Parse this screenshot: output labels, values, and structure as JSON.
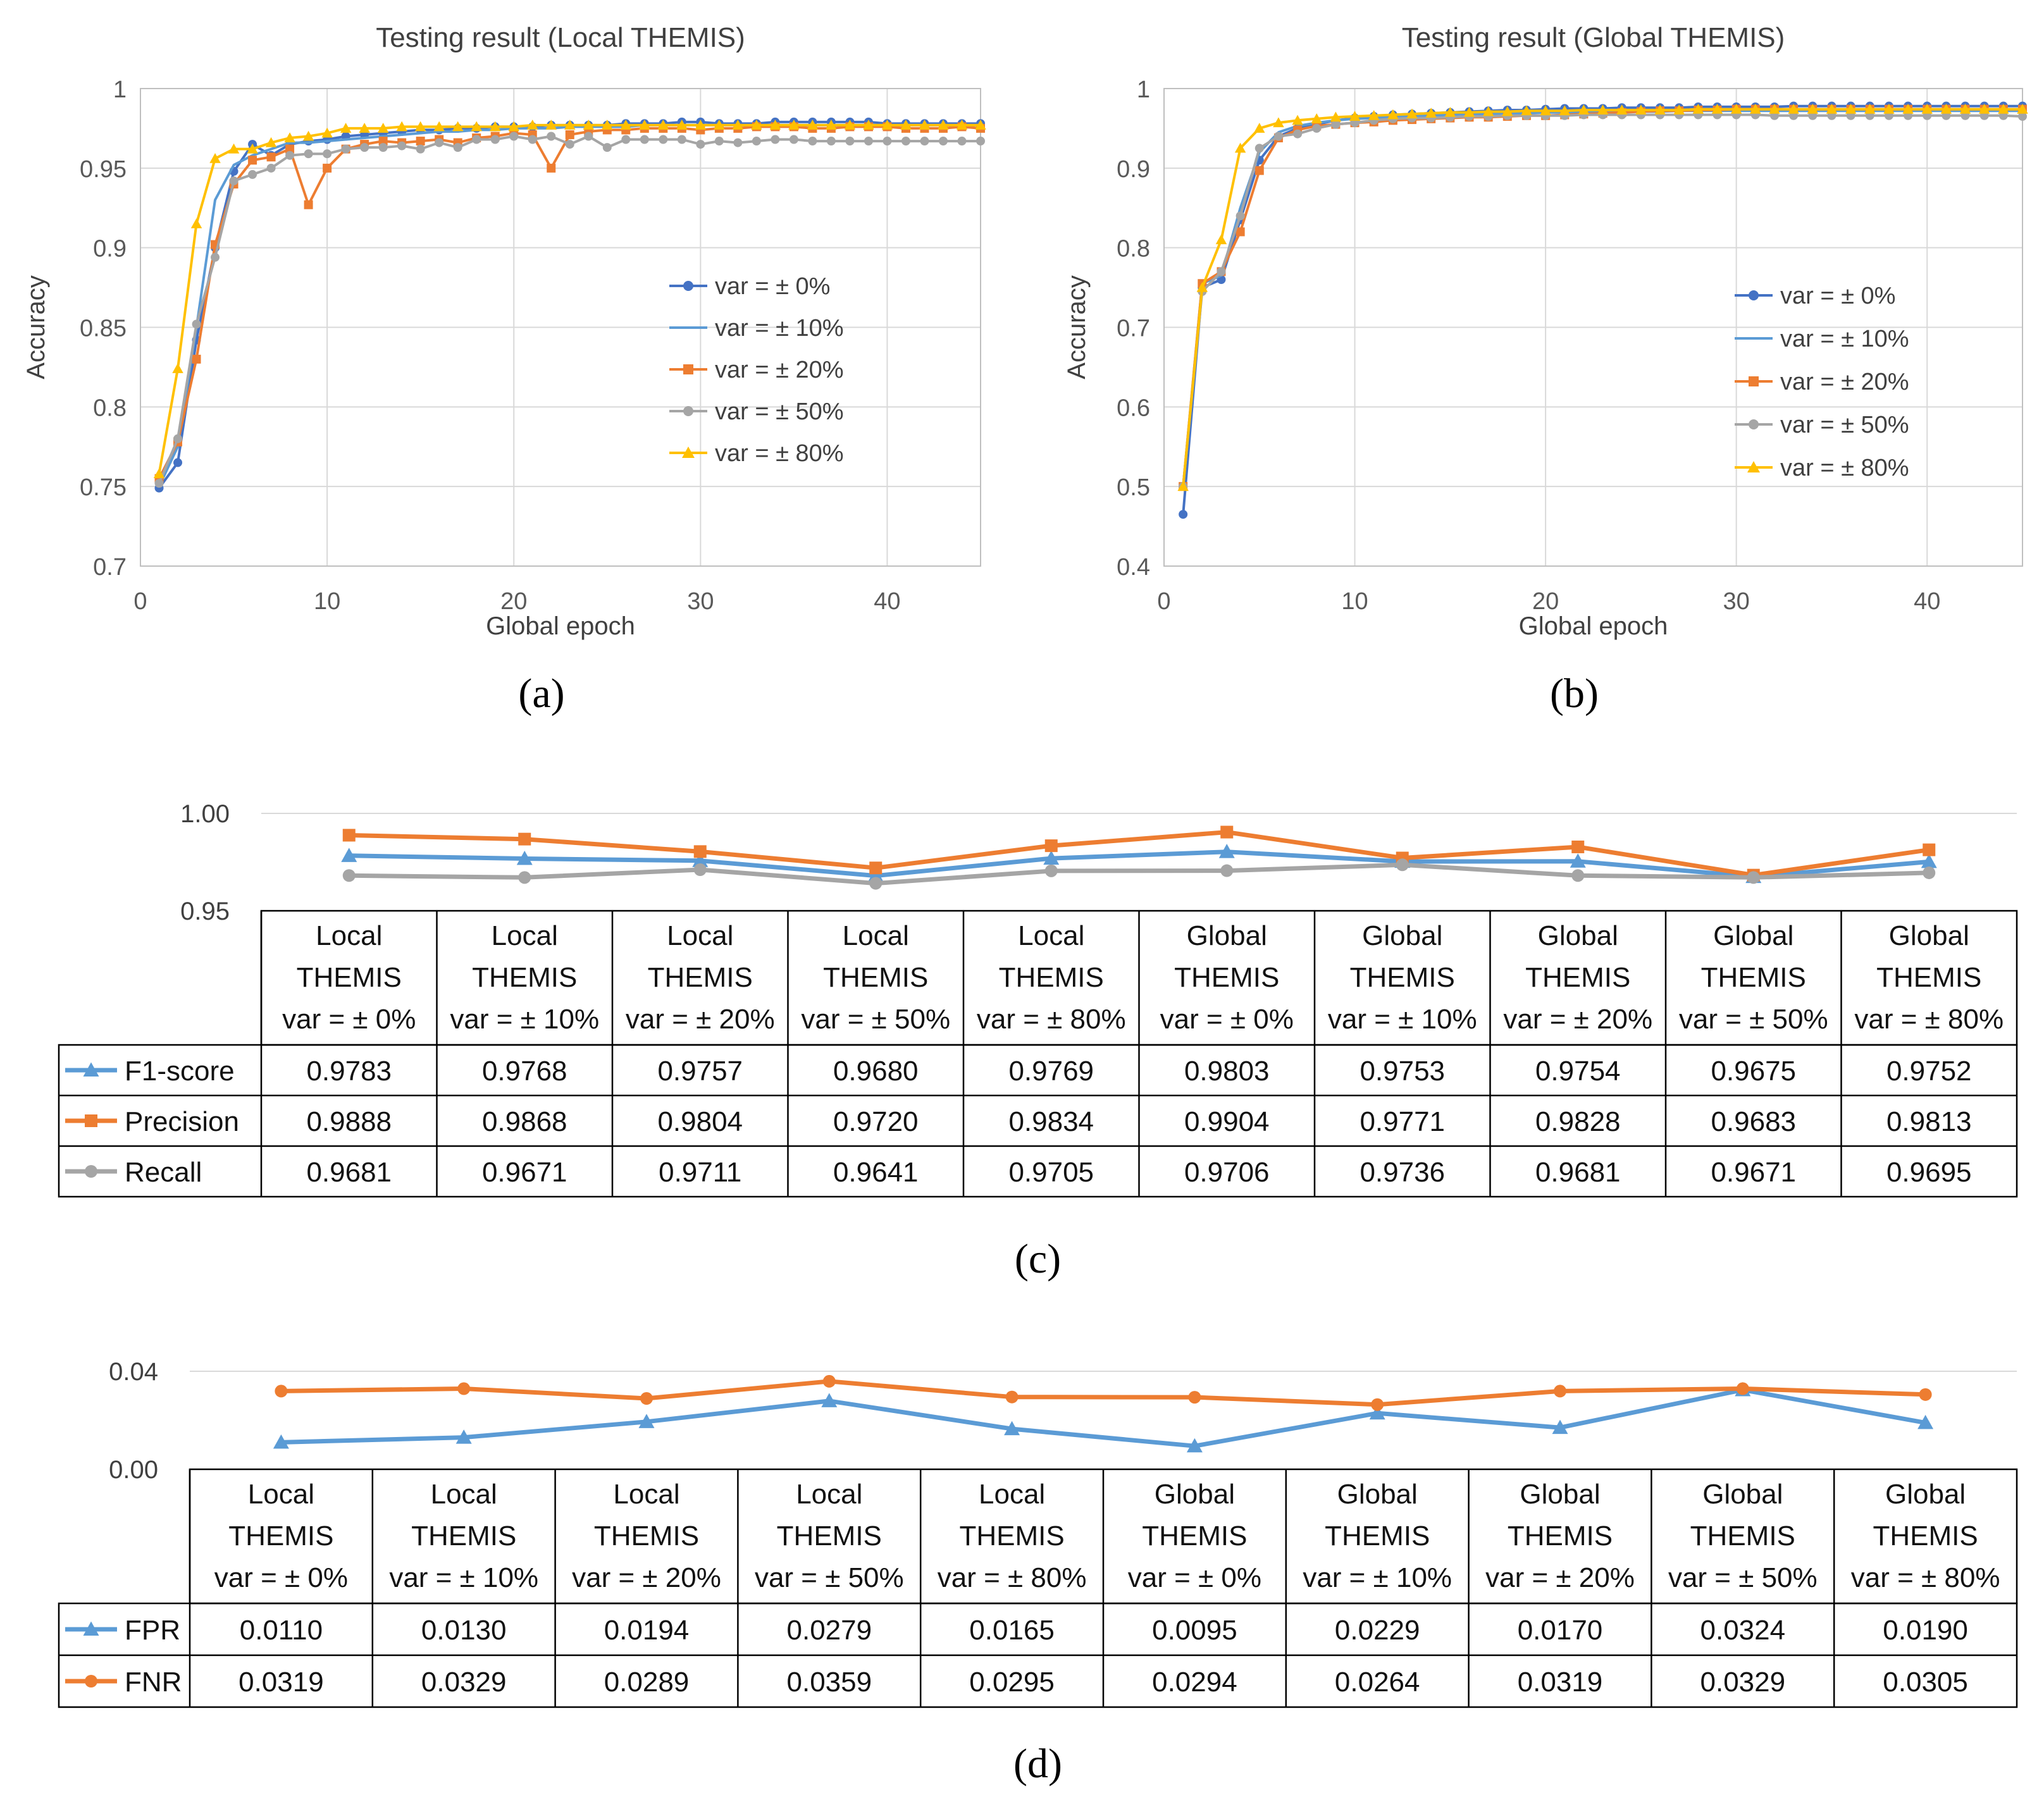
{
  "colors": {
    "blue_dark": "#4472C4",
    "blue_light": "#5B9BD5",
    "orange": "#ED7D31",
    "gray": "#A5A5A5",
    "yellow": "#FFC000",
    "grid": "#D9D9D9",
    "axis_text": "#595959"
  },
  "chart_data": [
    {
      "id": "a",
      "type": "line",
      "panel_label": "(a)",
      "title": "Testing result (Local THEMIS)",
      "xlabel": "Global epoch",
      "ylabel": "Accuracy",
      "xlim": [
        0,
        45
      ],
      "ylim": [
        0.7,
        1.0
      ],
      "xticks": [
        0,
        10,
        20,
        30,
        40
      ],
      "yticks": [
        0.7,
        0.75,
        0.8,
        0.85,
        0.9,
        0.95,
        1.0
      ],
      "ytick_labels": [
        "0.7",
        "0.75",
        "0.8",
        "0.85",
        "0.9",
        "0.95",
        "1"
      ],
      "legend_position": "right",
      "x": [
        1,
        2,
        3,
        4,
        5,
        6,
        7,
        8,
        9,
        10,
        11,
        12,
        13,
        14,
        15,
        16,
        17,
        18,
        19,
        20,
        21,
        22,
        23,
        24,
        25,
        26,
        27,
        28,
        29,
        30,
        31,
        32,
        33,
        34,
        35,
        36,
        37,
        38,
        39,
        40,
        41,
        42,
        43,
        44,
        45
      ],
      "series": [
        {
          "name": "var = ± 0%",
          "marker": "circle",
          "color": "#4472C4",
          "values": [
            0.749,
            0.765,
            0.842,
            0.9,
            0.948,
            0.965,
            0.958,
            0.965,
            0.967,
            0.968,
            0.97,
            0.971,
            0.972,
            0.973,
            0.974,
            0.974,
            0.975,
            0.975,
            0.976,
            0.976,
            0.976,
            0.977,
            0.977,
            0.977,
            0.977,
            0.978,
            0.978,
            0.978,
            0.979,
            0.979,
            0.978,
            0.978,
            0.978,
            0.979,
            0.979,
            0.979,
            0.979,
            0.979,
            0.979,
            0.978,
            0.978,
            0.978,
            0.978,
            0.978,
            0.978
          ]
        },
        {
          "name": "var = ± 10%",
          "marker": "none",
          "color": "#5B9BD5",
          "values": [
            0.75,
            0.775,
            0.85,
            0.93,
            0.952,
            0.958,
            0.962,
            0.966,
            0.966,
            0.967,
            0.968,
            0.969,
            0.97,
            0.971,
            0.972,
            0.973,
            0.973,
            0.974,
            0.974,
            0.975,
            0.975,
            0.975,
            0.976,
            0.976,
            0.976,
            0.976,
            0.977,
            0.977,
            0.977,
            0.977,
            0.977,
            0.977,
            0.977,
            0.977,
            0.977,
            0.977,
            0.977,
            0.977,
            0.977,
            0.977,
            0.977,
            0.977,
            0.977,
            0.977,
            0.977
          ]
        },
        {
          "name": "var = ± 20%",
          "marker": "square",
          "color": "#ED7D31",
          "values": [
            0.755,
            0.778,
            0.83,
            0.902,
            0.94,
            0.955,
            0.957,
            0.962,
            0.927,
            0.95,
            0.962,
            0.965,
            0.967,
            0.966,
            0.967,
            0.968,
            0.966,
            0.969,
            0.97,
            0.972,
            0.971,
            0.95,
            0.971,
            0.973,
            0.974,
            0.974,
            0.975,
            0.975,
            0.975,
            0.974,
            0.975,
            0.975,
            0.976,
            0.976,
            0.976,
            0.975,
            0.975,
            0.976,
            0.976,
            0.976,
            0.975,
            0.975,
            0.975,
            0.976,
            0.975
          ]
        },
        {
          "name": "var = ± 50%",
          "marker": "circle",
          "color": "#A5A5A5",
          "values": [
            0.752,
            0.78,
            0.852,
            0.894,
            0.942,
            0.946,
            0.95,
            0.958,
            0.959,
            0.959,
            0.962,
            0.963,
            0.963,
            0.964,
            0.962,
            0.966,
            0.963,
            0.968,
            0.968,
            0.97,
            0.968,
            0.97,
            0.965,
            0.97,
            0.963,
            0.968,
            0.968,
            0.968,
            0.968,
            0.965,
            0.967,
            0.966,
            0.967,
            0.968,
            0.968,
            0.967,
            0.967,
            0.967,
            0.967,
            0.967,
            0.967,
            0.967,
            0.967,
            0.967,
            0.967
          ]
        },
        {
          "name": "var = ± 80%",
          "marker": "triangle",
          "color": "#FFC000",
          "values": [
            0.758,
            0.824,
            0.915,
            0.956,
            0.962,
            0.962,
            0.966,
            0.969,
            0.97,
            0.972,
            0.975,
            0.975,
            0.975,
            0.976,
            0.976,
            0.976,
            0.976,
            0.976,
            0.976,
            0.976,
            0.977,
            0.977,
            0.977,
            0.977,
            0.977,
            0.977,
            0.977,
            0.977,
            0.977,
            0.977,
            0.977,
            0.977,
            0.977,
            0.977,
            0.977,
            0.977,
            0.977,
            0.977,
            0.977,
            0.977,
            0.977,
            0.977,
            0.977,
            0.977,
            0.977
          ]
        }
      ]
    },
    {
      "id": "b",
      "type": "line",
      "panel_label": "(b)",
      "title": "Testing result (Global THEMIS)",
      "xlabel": "Global epoch",
      "ylabel": "Accuracy",
      "xlim": [
        0,
        45
      ],
      "ylim": [
        0.4,
        1.0
      ],
      "xticks": [
        0,
        10,
        20,
        30,
        40
      ],
      "yticks": [
        0.4,
        0.5,
        0.6,
        0.7,
        0.8,
        0.9,
        1.0
      ],
      "ytick_labels": [
        "0.4",
        "0.5",
        "0.6",
        "0.7",
        "0.8",
        "0.9",
        "1"
      ],
      "legend_position": "right",
      "x": [
        1,
        2,
        3,
        4,
        5,
        6,
        7,
        8,
        9,
        10,
        11,
        12,
        13,
        14,
        15,
        16,
        17,
        18,
        19,
        20,
        21,
        22,
        23,
        24,
        25,
        26,
        27,
        28,
        29,
        30,
        31,
        32,
        33,
        34,
        35,
        36,
        37,
        38,
        39,
        40,
        41,
        42,
        43,
        44,
        45
      ],
      "series": [
        {
          "name": "var = ± 0%",
          "marker": "circle",
          "color": "#4472C4",
          "values": [
            0.465,
            0.75,
            0.76,
            0.835,
            0.91,
            0.94,
            0.95,
            0.955,
            0.96,
            0.963,
            0.965,
            0.967,
            0.968,
            0.969,
            0.97,
            0.971,
            0.972,
            0.973,
            0.973,
            0.974,
            0.975,
            0.975,
            0.975,
            0.976,
            0.976,
            0.976,
            0.976,
            0.977,
            0.977,
            0.977,
            0.977,
            0.977,
            0.978,
            0.978,
            0.978,
            0.978,
            0.978,
            0.978,
            0.978,
            0.978,
            0.978,
            0.978,
            0.978,
            0.978,
            0.978
          ]
        },
        {
          "name": "var = ± 10%",
          "marker": "none",
          "color": "#5B9BD5",
          "values": [
            0.5,
            0.755,
            0.765,
            0.85,
            0.92,
            0.945,
            0.953,
            0.957,
            0.96,
            0.962,
            0.963,
            0.964,
            0.965,
            0.966,
            0.967,
            0.968,
            0.968,
            0.969,
            0.969,
            0.97,
            0.97,
            0.97,
            0.971,
            0.971,
            0.971,
            0.971,
            0.972,
            0.972,
            0.972,
            0.972,
            0.972,
            0.972,
            0.972,
            0.972,
            0.972,
            0.972,
            0.972,
            0.972,
            0.972,
            0.972,
            0.972,
            0.972,
            0.972,
            0.972,
            0.972
          ]
        },
        {
          "name": "var = ± 20%",
          "marker": "square",
          "color": "#ED7D31",
          "values": [
            0.5,
            0.755,
            0.77,
            0.82,
            0.897,
            0.938,
            0.948,
            0.953,
            0.955,
            0.957,
            0.958,
            0.96,
            0.961,
            0.962,
            0.963,
            0.964,
            0.964,
            0.965,
            0.966,
            0.966,
            0.967,
            0.968,
            0.969,
            0.97,
            0.971,
            0.972,
            0.972,
            0.973,
            0.973,
            0.974,
            0.974,
            0.974,
            0.974,
            0.974,
            0.974,
            0.974,
            0.974,
            0.974,
            0.974,
            0.974,
            0.974,
            0.974,
            0.974,
            0.974,
            0.974
          ]
        },
        {
          "name": "var = ± 50%",
          "marker": "circle",
          "color": "#A5A5A5",
          "values": [
            0.5,
            0.745,
            0.77,
            0.84,
            0.925,
            0.94,
            0.943,
            0.95,
            0.955,
            0.957,
            0.96,
            0.962,
            0.963,
            0.963,
            0.964,
            0.965,
            0.965,
            0.966,
            0.966,
            0.966,
            0.966,
            0.967,
            0.967,
            0.967,
            0.967,
            0.967,
            0.967,
            0.967,
            0.967,
            0.967,
            0.967,
            0.966,
            0.966,
            0.966,
            0.966,
            0.966,
            0.966,
            0.966,
            0.966,
            0.966,
            0.966,
            0.966,
            0.966,
            0.966,
            0.965
          ]
        },
        {
          "name": "var = ± 80%",
          "marker": "triangle",
          "color": "#FFC000",
          "values": [
            0.5,
            0.75,
            0.81,
            0.925,
            0.95,
            0.957,
            0.96,
            0.962,
            0.964,
            0.965,
            0.966,
            0.967,
            0.968,
            0.969,
            0.97,
            0.97,
            0.971,
            0.971,
            0.972,
            0.972,
            0.972,
            0.973,
            0.973,
            0.973,
            0.973,
            0.973,
            0.973,
            0.974,
            0.974,
            0.974,
            0.974,
            0.974,
            0.974,
            0.974,
            0.974,
            0.974,
            0.974,
            0.974,
            0.974,
            0.974,
            0.974,
            0.974,
            0.974,
            0.974,
            0.974
          ]
        }
      ]
    },
    {
      "id": "c",
      "type": "line",
      "panel_label": "(c)",
      "ylim": [
        0.95,
        1.0
      ],
      "yticks": [
        0.95,
        1.0
      ],
      "ytick_labels": [
        "0.95",
        "1.00"
      ],
      "categories": [
        [
          "Local",
          "THEMIS",
          "var = ± 0%"
        ],
        [
          "Local",
          "THEMIS",
          "var = ± 10%"
        ],
        [
          "Local",
          "THEMIS",
          "var = ± 20%"
        ],
        [
          "Local",
          "THEMIS",
          "var = ± 50%"
        ],
        [
          "Local",
          "THEMIS",
          "var = ± 80%"
        ],
        [
          "Global",
          "THEMIS",
          "var = ± 0%"
        ],
        [
          "Global",
          "THEMIS",
          "var = ± 10%"
        ],
        [
          "Global",
          "THEMIS",
          "var = ± 20%"
        ],
        [
          "Global",
          "THEMIS",
          "var = ± 50%"
        ],
        [
          "Global",
          "THEMIS",
          "var = ± 80%"
        ]
      ],
      "series": [
        {
          "name": "F1-score",
          "marker": "triangle",
          "color": "#5B9BD5",
          "values": [
            0.9783,
            0.9768,
            0.9757,
            0.968,
            0.9769,
            0.9803,
            0.9753,
            0.9754,
            0.9675,
            0.9752
          ],
          "labels": [
            "0.9783",
            "0.9768",
            "0.9757",
            "0.9680",
            "0.9769",
            "0.9803",
            "0.9753",
            "0.9754",
            "0.9675",
            "0.9752"
          ]
        },
        {
          "name": "Precision",
          "marker": "square",
          "color": "#ED7D31",
          "values": [
            0.9888,
            0.9868,
            0.9804,
            0.972,
            0.9834,
            0.9904,
            0.9771,
            0.9828,
            0.9683,
            0.9813
          ],
          "labels": [
            "0.9888",
            "0.9868",
            "0.9804",
            "0.9720",
            "0.9834",
            "0.9904",
            "0.9771",
            "0.9828",
            "0.9683",
            "0.9813"
          ]
        },
        {
          "name": "Recall",
          "marker": "circle",
          "color": "#A5A5A5",
          "values": [
            0.9681,
            0.9671,
            0.9711,
            0.9641,
            0.9705,
            0.9706,
            0.9736,
            0.9681,
            0.9671,
            0.9695
          ],
          "labels": [
            "0.9681",
            "0.9671",
            "0.9711",
            "0.9641",
            "0.9705",
            "0.9706",
            "0.9736",
            "0.9681",
            "0.9671",
            "0.9695"
          ]
        }
      ]
    },
    {
      "id": "d",
      "type": "line",
      "panel_label": "(d)",
      "ylim": [
        0.0,
        0.04
      ],
      "yticks": [
        0.0,
        0.04
      ],
      "ytick_labels": [
        "0.00",
        "0.04"
      ],
      "categories": [
        [
          "Local",
          "THEMIS",
          "var = ± 0%"
        ],
        [
          "Local",
          "THEMIS",
          "var = ± 10%"
        ],
        [
          "Local",
          "THEMIS",
          "var = ± 20%"
        ],
        [
          "Local",
          "THEMIS",
          "var = ± 50%"
        ],
        [
          "Local",
          "THEMIS",
          "var = ± 80%"
        ],
        [
          "Global",
          "THEMIS",
          "var = ± 0%"
        ],
        [
          "Global",
          "THEMIS",
          "var = ± 10%"
        ],
        [
          "Global",
          "THEMIS",
          "var = ± 20%"
        ],
        [
          "Global",
          "THEMIS",
          "var = ± 50%"
        ],
        [
          "Global",
          "THEMIS",
          "var = ± 80%"
        ]
      ],
      "series": [
        {
          "name": "FPR",
          "marker": "triangle",
          "color": "#5B9BD5",
          "values": [
            0.011,
            0.013,
            0.0194,
            0.0279,
            0.0165,
            0.0095,
            0.0229,
            0.017,
            0.0324,
            0.019
          ],
          "labels": [
            "0.0110",
            "0.0130",
            "0.0194",
            "0.0279",
            "0.0165",
            "0.0095",
            "0.0229",
            "0.0170",
            "0.0324",
            "0.0190"
          ]
        },
        {
          "name": "FNR",
          "marker": "circle",
          "color": "#ED7D31",
          "values": [
            0.0319,
            0.0329,
            0.0289,
            0.0359,
            0.0295,
            0.0294,
            0.0264,
            0.0319,
            0.0329,
            0.0305
          ],
          "labels": [
            "0.0319",
            "0.0329",
            "0.0289",
            "0.0359",
            "0.0295",
            "0.0294",
            "0.0264",
            "0.0319",
            "0.0329",
            "0.0305"
          ]
        }
      ]
    }
  ]
}
